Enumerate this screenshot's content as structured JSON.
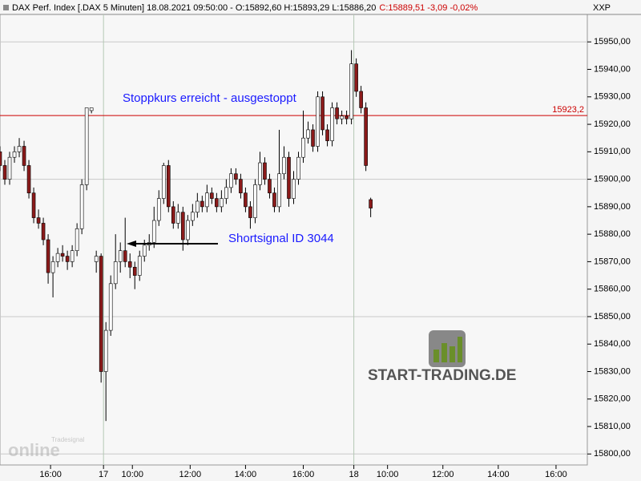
{
  "chart_data": {
    "type": "candlestick",
    "header": "DAX Perf. Index [.DAX  5 Minuten] 18.08.2021 09:50:00 - O:15892,60 H:15893,29 L:15886,20",
    "header_change": "C:15889,51 -3,09 -0,02%",
    "symbol": "XXP",
    "x": [
      0,
      2,
      4,
      6,
      8,
      10,
      12,
      14,
      16,
      18,
      20,
      22,
      24,
      26,
      28,
      30,
      32,
      34,
      36,
      38,
      40,
      42,
      44,
      46,
      48,
      50,
      52,
      54,
      56,
      58,
      60,
      62,
      64,
      66,
      68,
      70,
      72,
      74,
      76,
      78,
      80,
      82,
      84,
      86,
      88,
      90,
      92,
      94,
      96,
      98,
      100,
      102,
      104,
      106,
      108,
      110,
      112,
      114,
      116,
      118,
      120,
      122,
      124,
      126,
      128,
      130,
      132,
      134,
      136,
      138,
      140,
      142,
      144,
      146,
      148,
      150,
      152,
      154
    ],
    "open": [
      15910,
      15905,
      15900,
      15908,
      15910,
      15912,
      15905,
      15895,
      15886,
      15884,
      15878,
      15866,
      15870,
      15873,
      15872,
      15870,
      15874,
      15882,
      15898,
      15925,
      15870,
      15872,
      15830,
      15845,
      15862,
      15870,
      15874,
      15870,
      15868,
      15865,
      15872,
      15876,
      15877,
      15885,
      15893,
      15905,
      15890,
      15884,
      15888,
      15878,
      15885,
      15888,
      15892,
      15890,
      15895,
      15893,
      15890,
      15893,
      15897,
      15902,
      15900,
      15895,
      15890,
      15886,
      15898,
      15906,
      15900,
      15895,
      15890,
      15902,
      15908,
      15893,
      15900,
      15908,
      15915,
      15918,
      15912,
      15930,
      15918,
      15914,
      15926,
      15922,
      15923,
      15922,
      15942,
      15932,
      15926,
      15892.6
    ],
    "high": [
      15912,
      15907,
      15910,
      15912,
      15915,
      15914,
      15907,
      15897,
      15889,
      15886,
      15880,
      15872,
      15875,
      15876,
      15874,
      15876,
      15884,
      15900,
      15926,
      15926,
      15874,
      15873,
      15848,
      15865,
      15880,
      15877,
      15886,
      15873,
      15870,
      15874,
      15878,
      15880,
      15890,
      15896,
      15906,
      15907,
      15892,
      15891,
      15890,
      15887,
      15891,
      15895,
      15894,
      15898,
      15897,
      15895,
      15896,
      15900,
      15904,
      15904,
      15902,
      15897,
      15892,
      15900,
      15910,
      15908,
      15902,
      15897,
      15918,
      15912,
      15910,
      15903,
      15910,
      15925,
      15921,
      15920,
      15932,
      15932,
      15920,
      15928,
      15928,
      15925,
      15925,
      15947,
      15944,
      15934,
      15928,
      15893.29
    ],
    "low": [
      15903,
      15898,
      15898,
      15906,
      15908,
      15903,
      15893,
      15884,
      15882,
      15876,
      15862,
      15857,
      15868,
      15870,
      15867,
      15868,
      15872,
      15880,
      15896,
      15924,
      15866,
      15826,
      15812,
      15843,
      15860,
      15866,
      15868,
      15864,
      15860,
      15863,
      15870,
      15874,
      15875,
      15883,
      15891,
      15888,
      15882,
      15882,
      15874,
      15876,
      15883,
      15886,
      15888,
      15888,
      15891,
      15888,
      15888,
      15891,
      15895,
      15898,
      15893,
      15888,
      15882,
      15884,
      15896,
      15898,
      15893,
      15888,
      15888,
      15900,
      15890,
      15891,
      15898,
      15906,
      15913,
      15910,
      15910,
      15916,
      15912,
      15912,
      15920,
      15920,
      15920,
      15920,
      15930,
      15924,
      15903,
      15886.2
    ],
    "close": [
      15905,
      15900,
      15908,
      15910,
      15912,
      15905,
      15895,
      15886,
      15884,
      15878,
      15866,
      15870,
      15873,
      15872,
      15870,
      15874,
      15882,
      15898,
      15926,
      15926,
      15872,
      15830,
      15845,
      15862,
      15870,
      15874,
      15870,
      15868,
      15865,
      15872,
      15876,
      15877,
      15885,
      15893,
      15905,
      15890,
      15884,
      15888,
      15878,
      15885,
      15888,
      15892,
      15890,
      15895,
      15893,
      15890,
      15893,
      15897,
      15902,
      15900,
      15895,
      15890,
      15886,
      15898,
      15906,
      15900,
      15895,
      15890,
      15902,
      15908,
      15893,
      15900,
      15908,
      15915,
      15918,
      15912,
      15930,
      15918,
      15914,
      15926,
      15922,
      15923,
      15922,
      15942,
      15932,
      15926,
      15905,
      15889.51
    ],
    "up_color": "#ffffff",
    "down_color": "#8b1a1a",
    "xlim": [
      0,
      244
    ],
    "xticks": [
      {
        "value": 21,
        "label": "16:00"
      },
      {
        "value": 43,
        "label": "17"
      },
      {
        "value": 55,
        "label": "10:00"
      },
      {
        "value": 79,
        "label": "12:00"
      },
      {
        "value": 102,
        "label": "14:00"
      },
      {
        "value": 126,
        "label": "16:00"
      },
      {
        "value": 147,
        "label": "18"
      },
      {
        "value": 161,
        "label": "10:00"
      },
      {
        "value": 184,
        "label": "12:00"
      },
      {
        "value": 207,
        "label": "14:00"
      },
      {
        "value": 231,
        "label": "16:00"
      }
    ],
    "ylim": [
      15796,
      15960
    ],
    "yticks": [
      {
        "value": 15800,
        "label": "15800,00"
      },
      {
        "value": 15810,
        "label": "15810,00"
      },
      {
        "value": 15820,
        "label": "15820,00"
      },
      {
        "value": 15830,
        "label": "15830,00"
      },
      {
        "value": 15840,
        "label": "15840,00"
      },
      {
        "value": 15850,
        "label": "15850,00"
      },
      {
        "value": 15860,
        "label": "15860,00"
      },
      {
        "value": 15870,
        "label": "15870,00"
      },
      {
        "value": 15880,
        "label": "15880,00"
      },
      {
        "value": 15890,
        "label": "15890,00"
      },
      {
        "value": 15900,
        "label": "15900,00"
      },
      {
        "value": 15910,
        "label": "15910,00"
      },
      {
        "value": 15920,
        "label": "15920,00"
      },
      {
        "value": 15930,
        "label": "15930,00"
      },
      {
        "value": 15940,
        "label": "15940,00"
      },
      {
        "value": 15950,
        "label": "15950,00"
      }
    ],
    "stop_line": {
      "value": 15923.2,
      "label": "15923,2",
      "color": "#cc0000"
    },
    "annotations": [
      {
        "text": "Stoppkurs erreicht - ausgestoppt",
        "color": "#1a1aff"
      },
      {
        "text": "Shortsignal ID 3044",
        "color": "#1a1aff"
      }
    ],
    "logo": {
      "text": "START-TRADING.DE"
    },
    "watermark": {
      "brand": "Tradesignal",
      "product": "online"
    }
  }
}
